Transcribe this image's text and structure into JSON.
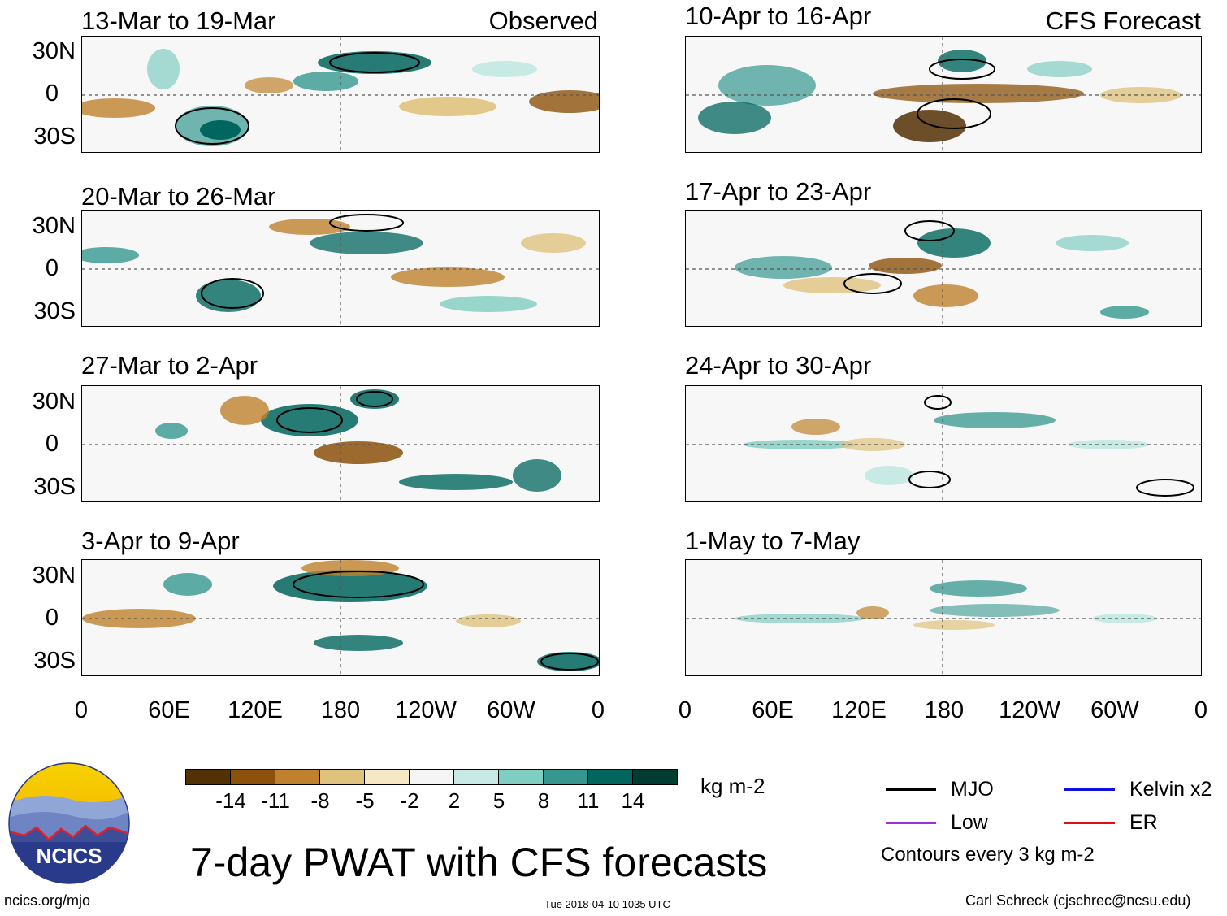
{
  "headers": {
    "observed": "Observed",
    "forecast": "CFS Forecast"
  },
  "panels_left": [
    {
      "title": "13-Mar to 19-Mar"
    },
    {
      "title": "20-Mar to 26-Mar"
    },
    {
      "title": "27-Mar to 2-Apr"
    },
    {
      "title": "3-Apr to 9-Apr"
    }
  ],
  "panels_right": [
    {
      "title": "10-Apr to 16-Apr"
    },
    {
      "title": "17-Apr to 23-Apr"
    },
    {
      "title": "24-Apr to 30-Apr"
    },
    {
      "title": "1-May to 7-May"
    }
  ],
  "lat_labels": [
    "30N",
    "0",
    "30S"
  ],
  "lon_labels": [
    "0",
    "60E",
    "120E",
    "180",
    "120W",
    "60W",
    "0"
  ],
  "colorbar": {
    "ticks": [
      "-14",
      "-11",
      "-8",
      "-5",
      "-2",
      "2",
      "5",
      "8",
      "11",
      "14"
    ],
    "colors": [
      "#543005",
      "#8c510a",
      "#bf812d",
      "#dfc27d",
      "#f6e8c3",
      "#f5f5f5",
      "#c7eae5",
      "#80cdc1",
      "#35978f",
      "#01665e",
      "#003c30"
    ],
    "units": "kg m-2"
  },
  "legend": {
    "mjo": "MJO",
    "kelvin": "Kelvin x2",
    "low": "Low",
    "er": "ER",
    "contours": "Contours every 3 kg m-2",
    "colors": {
      "mjo": "#000000",
      "kelvin": "#1010e0",
      "low": "#9b30d9",
      "er": "#e01010"
    }
  },
  "title": "7-day PWAT with CFS forecasts",
  "logo": {
    "text": "NCICS"
  },
  "footer": {
    "url": "ncics.org/mjo",
    "timestamp": "Tue 2018-04-10 1035 UTC",
    "credit": "Carl Schreck (cjschrec@ncsu.edu)"
  }
}
